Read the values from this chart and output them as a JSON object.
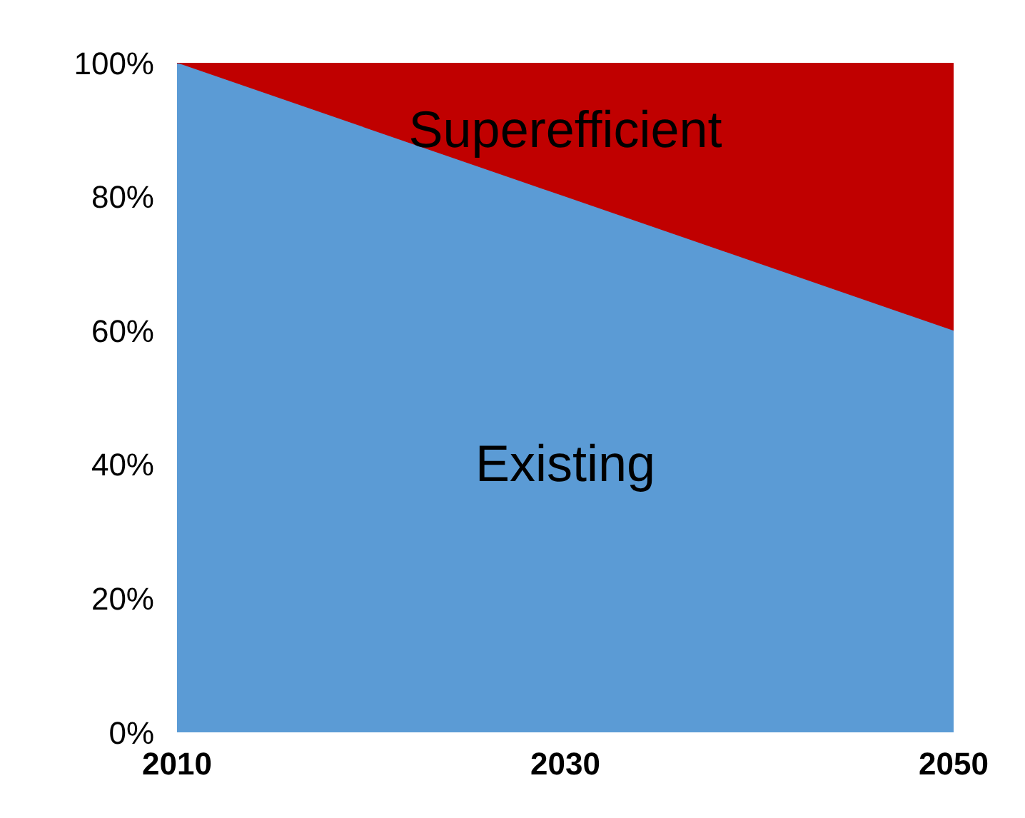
{
  "chart_data": {
    "type": "area",
    "stacked": true,
    "x": [
      2010,
      2030,
      2050
    ],
    "xlim": [
      2010,
      2050
    ],
    "xticks": [
      2010,
      2030,
      2050
    ],
    "ylim": [
      0,
      100
    ],
    "yticks": [
      {
        "value": 0,
        "label": "0%"
      },
      {
        "value": 20,
        "label": "20%"
      },
      {
        "value": 40,
        "label": "40%"
      },
      {
        "value": 60,
        "label": "60%"
      },
      {
        "value": 80,
        "label": "80%"
      },
      {
        "value": 100,
        "label": "100%"
      }
    ],
    "grid": false,
    "legend": false,
    "series": [
      {
        "name": "Existing",
        "color": "#5b9bd5",
        "values": [
          100,
          80,
          60
        ]
      },
      {
        "name": "Superefficient",
        "color": "#c00000",
        "values": [
          0,
          20,
          40
        ]
      }
    ]
  }
}
